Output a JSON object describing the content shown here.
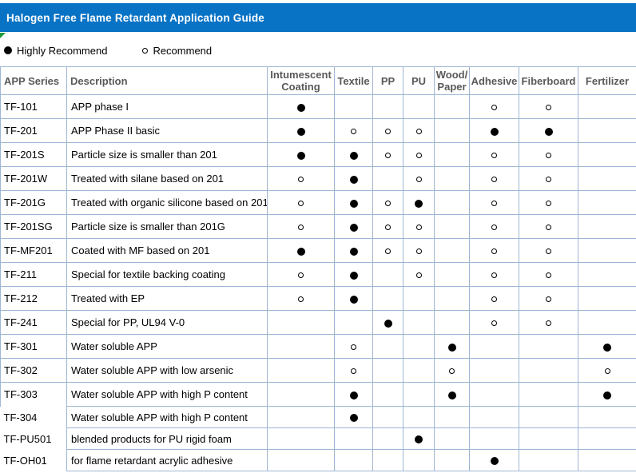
{
  "title_bar": {
    "title": "Halogen Free Flame Retardant Application Guide"
  },
  "legend": {
    "items": [
      {
        "icon": "filled-circle",
        "label": "Highly Recommend"
      },
      {
        "icon": "open-circle",
        "label": "Recommend"
      }
    ]
  },
  "icons": {
    "highly_recommend": "filled-circle",
    "recommend": "open-circle",
    "corner_marker": "green-triangle"
  },
  "colors": {
    "title_bar_bg": "#0873C5",
    "title_text": "#FFFFFF",
    "grid_border": "#9FB6D4",
    "header_text": "#595959",
    "marker_green": "#1E9C3C",
    "mark_color": "#000000"
  },
  "table": {
    "headers": [
      "APP Series",
      "Description",
      "Intumescent Coating",
      "Textile",
      "PP",
      "PU",
      "Wood/\nPaper",
      "Adhesive",
      "Fiberboard",
      "Fertilizer"
    ],
    "mark_legend": {
      "highly": "Highly Recommend",
      "recommend": "Recommend"
    },
    "rows": [
      {
        "series": "TF-101",
        "description": "APP phase I",
        "marks": [
          "highly",
          "",
          "",
          "",
          "",
          "recommend",
          "recommend",
          ""
        ]
      },
      {
        "series": "TF-201",
        "description": "APP Phase II basic",
        "marks": [
          "highly",
          "recommend",
          "recommend",
          "recommend",
          "",
          "highly",
          "highly",
          ""
        ]
      },
      {
        "series": "TF-201S",
        "description": "Particle size is smaller than 201",
        "marks": [
          "highly",
          "highly",
          "recommend",
          "recommend",
          "",
          "recommend",
          "recommend",
          ""
        ]
      },
      {
        "series": "TF-201W",
        "description": "Treated with silane based on 201",
        "marks": [
          "recommend",
          "highly",
          "",
          "recommend",
          "",
          "recommend",
          "recommend",
          ""
        ]
      },
      {
        "series": "TF-201G",
        "description": "Treated with organic silicone based on 201",
        "marks": [
          "recommend",
          "highly",
          "recommend",
          "highly",
          "",
          "recommend",
          "recommend",
          ""
        ]
      },
      {
        "series": "TF-201SG",
        "description": "Particle size is smaller than 201G",
        "marks": [
          "recommend",
          "highly",
          "recommend",
          "recommend",
          "",
          "recommend",
          "recommend",
          ""
        ]
      },
      {
        "series": "TF-MF201",
        "description": "Coated with MF based on 201",
        "marks": [
          "highly",
          "highly",
          "recommend",
          "recommend",
          "",
          "recommend",
          "recommend",
          ""
        ]
      },
      {
        "series": "TF-211",
        "description": "Special for textile backing coating",
        "marks": [
          "recommend",
          "highly",
          "",
          "recommend",
          "",
          "recommend",
          "recommend",
          ""
        ]
      },
      {
        "series": "TF-212",
        "description": "Treated with EP",
        "marks": [
          "recommend",
          "highly",
          "",
          "",
          "",
          "recommend",
          "recommend",
          ""
        ]
      },
      {
        "series": "TF-241",
        "description": "Special for PP, UL94 V-0",
        "marks": [
          "",
          "",
          "highly",
          "",
          "",
          "recommend",
          "recommend",
          ""
        ]
      },
      {
        "series": "TF-301",
        "description": "Water soluble APP",
        "marks": [
          "",
          "recommend",
          "",
          "",
          "highly",
          "",
          "",
          "highly"
        ]
      },
      {
        "series": "TF-302",
        "description": "Water soluble APP with low arsenic",
        "marks": [
          "",
          "recommend",
          "",
          "",
          "recommend",
          "",
          "",
          "recommend"
        ]
      },
      {
        "series": "TF-303",
        "description": "Water soluble APP with high P content",
        "marks": [
          "",
          "highly",
          "",
          "",
          "highly",
          "",
          "",
          "highly"
        ]
      },
      {
        "series": "TF-304",
        "description": "Water soluble APP with high P content",
        "marks": [
          "",
          "highly",
          "",
          "",
          "",
          "",
          "",
          ""
        ]
      },
      {
        "series": "TF-PU501",
        "description": "blended products for PU rigid foam",
        "marks": [
          "",
          "",
          "",
          "highly",
          "",
          "",
          "",
          ""
        ]
      },
      {
        "series": "TF-OH01",
        "description": "for flame retardant acrylic adhesive",
        "marks": [
          "",
          "",
          "",
          "",
          "",
          "highly",
          "",
          ""
        ]
      }
    ]
  }
}
